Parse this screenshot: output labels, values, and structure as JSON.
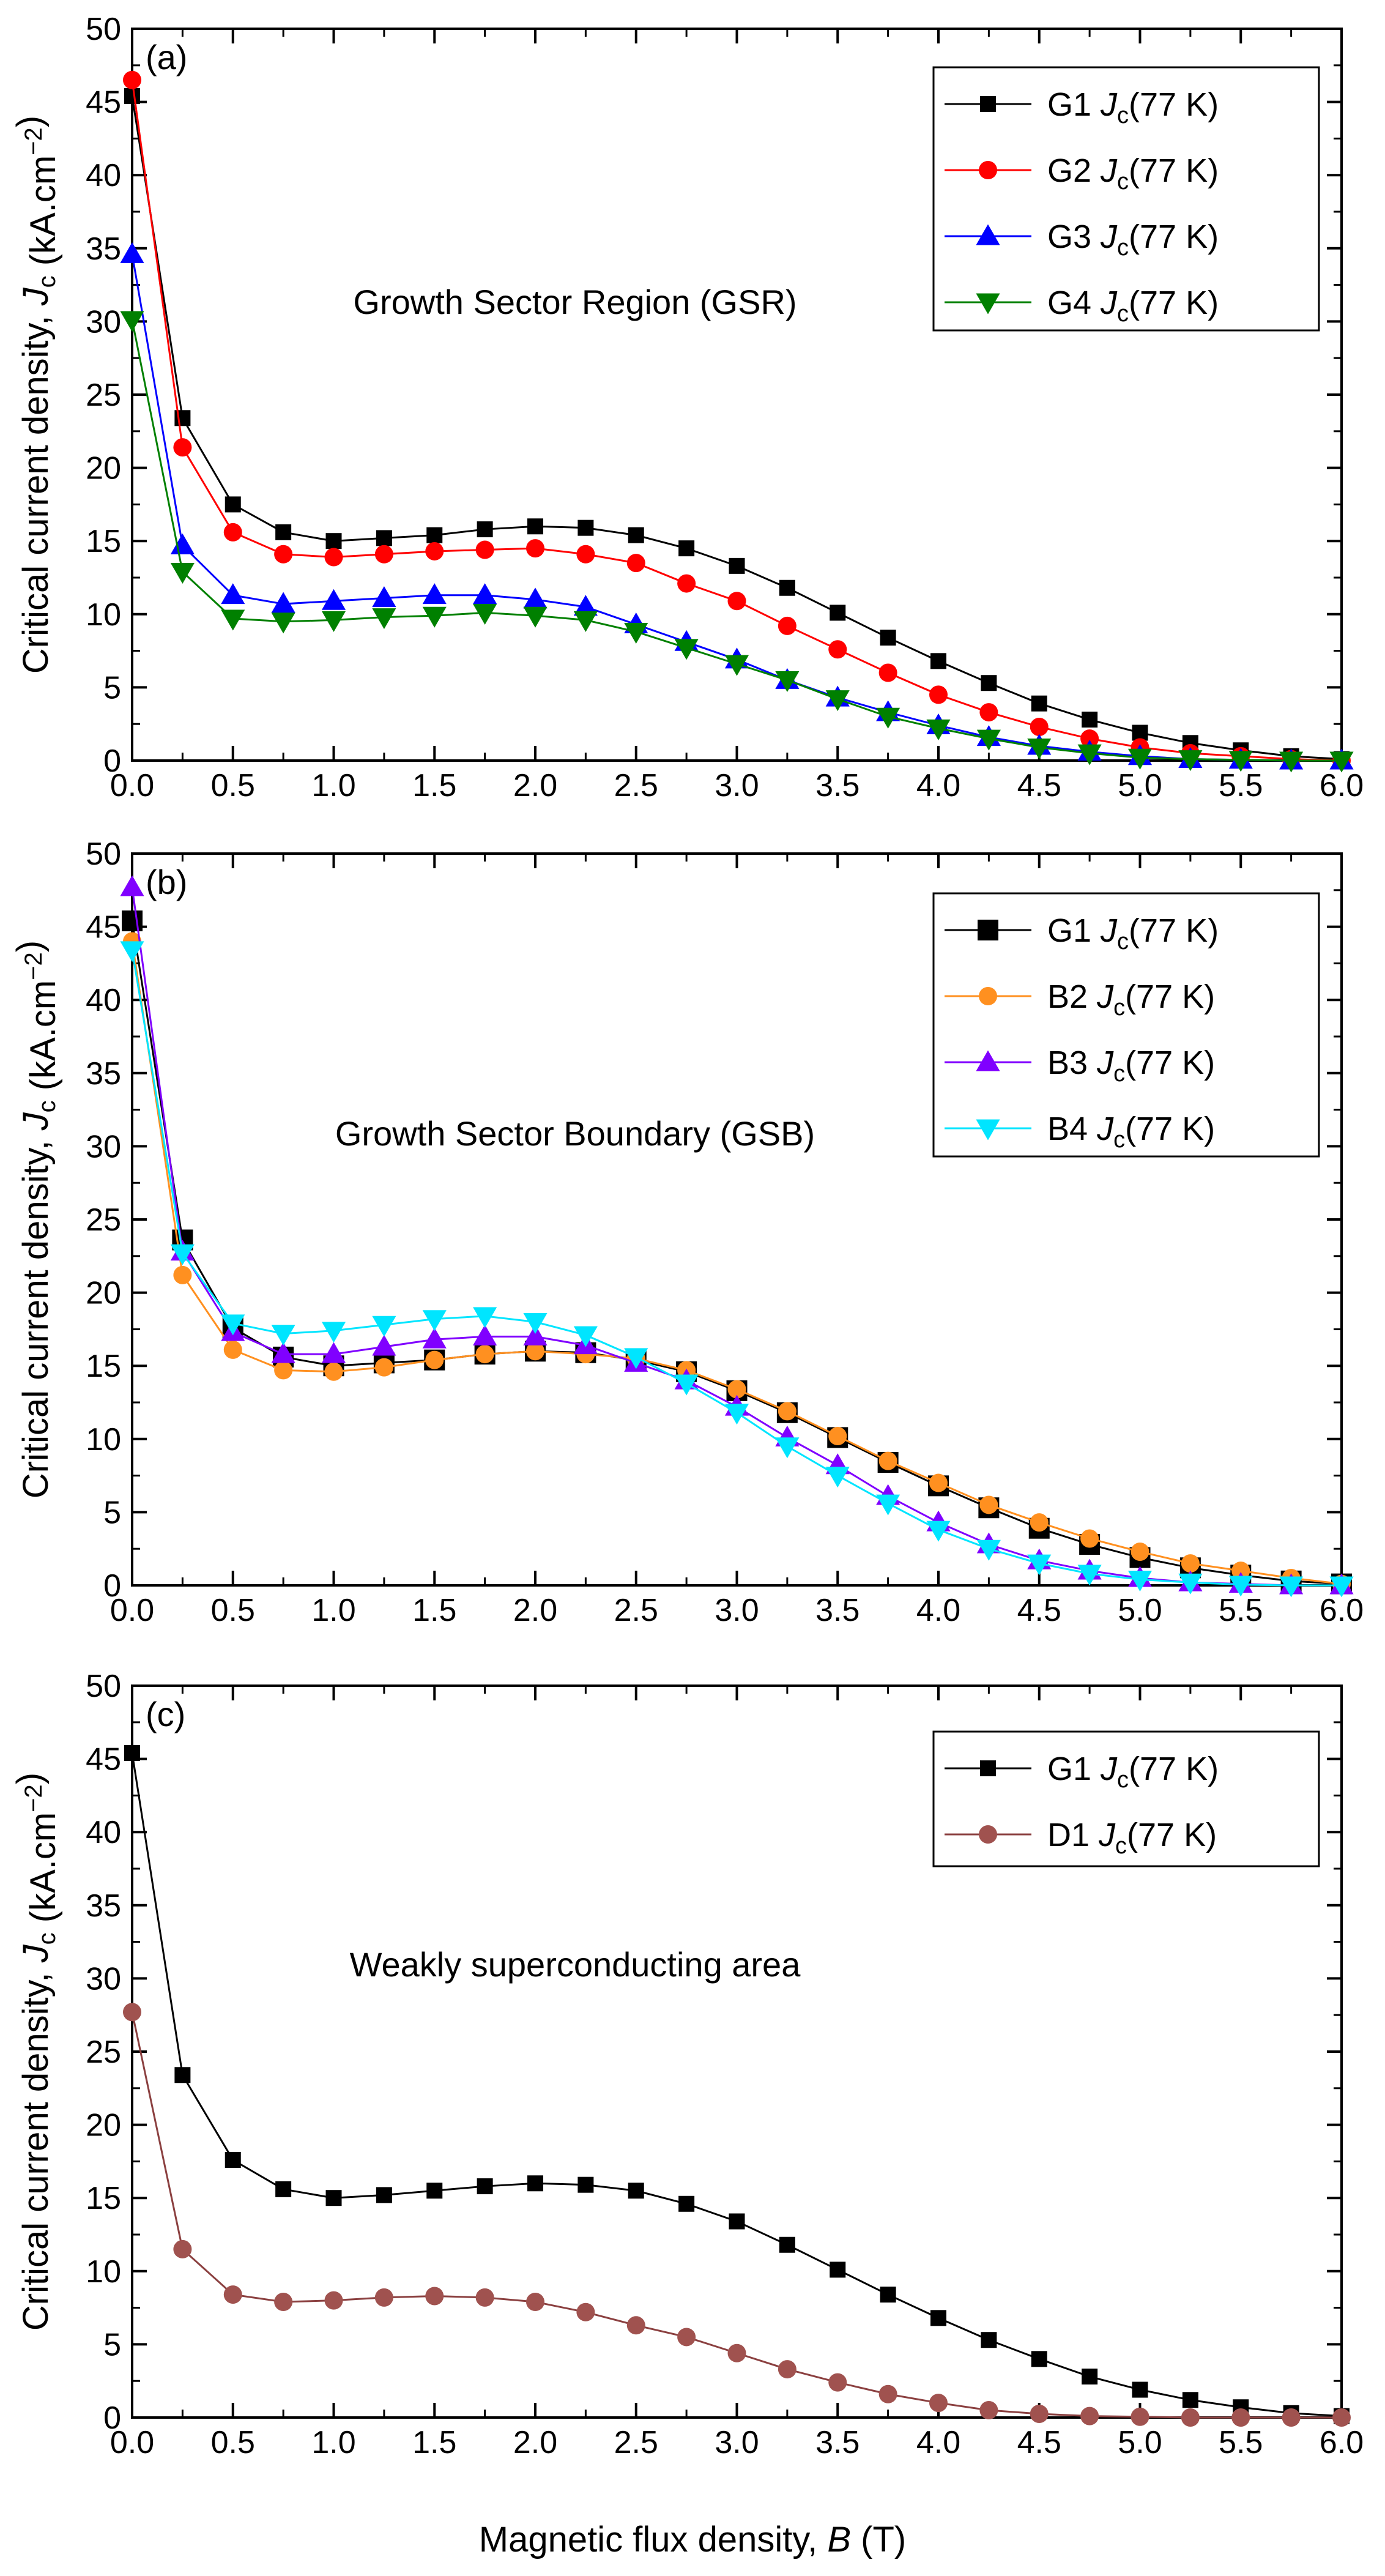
{
  "figure": {
    "xlabel_prefix": "Magnetic flux density, ",
    "xlabel_var": "B",
    "xlabel_unit": " (T)"
  },
  "chart_data": [
    {
      "type": "line",
      "panel_label": "(a)",
      "annotation": "Growth Sector Region (GSR)",
      "ylabel": {
        "prefix": "Critical current density, ",
        "var": "J",
        "sub": "c",
        "unit_open": " (kA.cm",
        "sup": "−2",
        "unit_close": ")"
      },
      "xlim": [
        0,
        6
      ],
      "ylim": [
        0,
        50
      ],
      "x_ticks": [
        "0.0",
        "0.5",
        "1.0",
        "1.5",
        "2.0",
        "2.5",
        "3.0",
        "3.5",
        "4.0",
        "4.5",
        "5.0",
        "5.5",
        "6.0"
      ],
      "y_ticks": [
        "0",
        "5",
        "10",
        "15",
        "20",
        "25",
        "30",
        "35",
        "40",
        "45",
        "50"
      ],
      "legend_position": "top-right",
      "x": [
        0,
        0.25,
        0.5,
        0.75,
        1.0,
        1.25,
        1.5,
        1.75,
        2.0,
        2.25,
        2.5,
        2.75,
        3.0,
        3.25,
        3.5,
        3.75,
        4.0,
        4.25,
        4.5,
        4.75,
        5.0,
        5.25,
        5.5,
        5.75,
        6.0
      ],
      "series": [
        {
          "name": "G1",
          "sub": "c",
          "suffix": "(77 K)",
          "color": "#000000",
          "marker": "square",
          "values": [
            45.4,
            23.4,
            17.5,
            15.6,
            15.0,
            15.2,
            15.4,
            15.8,
            16.0,
            15.9,
            15.4,
            14.5,
            13.3,
            11.8,
            10.1,
            8.4,
            6.8,
            5.3,
            3.9,
            2.8,
            1.9,
            1.2,
            0.7,
            0.3,
            0.1
          ]
        },
        {
          "name": "G2",
          "sub": "c",
          "suffix": "(77 K)",
          "color": "#ff0000",
          "marker": "circle",
          "values": [
            46.5,
            21.4,
            15.6,
            14.1,
            13.9,
            14.1,
            14.3,
            14.4,
            14.5,
            14.1,
            13.5,
            12.1,
            10.9,
            9.2,
            7.6,
            6.0,
            4.5,
            3.3,
            2.3,
            1.5,
            0.9,
            0.5,
            0.3,
            0.1,
            0.0
          ]
        },
        {
          "name": "G3",
          "sub": "c",
          "suffix": "(77 K)",
          "color": "#0000ff",
          "marker": "triangle-up",
          "values": [
            34.6,
            14.7,
            11.3,
            10.7,
            10.9,
            11.1,
            11.3,
            11.3,
            11.0,
            10.5,
            9.3,
            8.1,
            6.9,
            5.5,
            4.3,
            3.3,
            2.4,
            1.6,
            1.0,
            0.6,
            0.3,
            0.1,
            0.05,
            0.0,
            0.0
          ]
        },
        {
          "name": "G4",
          "sub": "c",
          "suffix": "(77 K)",
          "color": "#008000",
          "marker": "triangle-down",
          "values": [
            30.1,
            12.9,
            9.7,
            9.5,
            9.6,
            9.8,
            9.9,
            10.1,
            9.9,
            9.6,
            8.8,
            7.7,
            6.6,
            5.5,
            4.2,
            3.0,
            2.2,
            1.5,
            0.9,
            0.5,
            0.2,
            0.1,
            0.05,
            0.0,
            0.0
          ]
        }
      ]
    },
    {
      "type": "line",
      "panel_label": "(b)",
      "annotation": "Growth Sector Boundary (GSB)",
      "ylabel": {
        "prefix": "Critical current density, ",
        "var": "J",
        "sub": "c",
        "unit_open": " (kA.cm",
        "sup": "−2",
        "unit_close": ")"
      },
      "xlim": [
        0,
        6
      ],
      "ylim": [
        0,
        50
      ],
      "x_ticks": [
        "0.0",
        "0.5",
        "1.0",
        "1.5",
        "2.0",
        "2.5",
        "3.0",
        "3.5",
        "4.0",
        "4.5",
        "5.0",
        "5.5",
        "6.0"
      ],
      "y_ticks": [
        "0",
        "5",
        "10",
        "15",
        "20",
        "25",
        "30",
        "35",
        "40",
        "45",
        "50"
      ],
      "legend_position": "top-right",
      "x": [
        0,
        0.25,
        0.5,
        0.75,
        1.0,
        1.25,
        1.5,
        1.75,
        2.0,
        2.25,
        2.5,
        2.75,
        3.0,
        3.25,
        3.5,
        3.75,
        4.0,
        4.25,
        4.5,
        4.75,
        5.0,
        5.25,
        5.5,
        5.75,
        6.0
      ],
      "series": [
        {
          "name": "G1",
          "sub": "c",
          "suffix": "(77 K)",
          "color": "#000000",
          "marker": "square-large",
          "values": [
            45.4,
            23.6,
            17.6,
            15.6,
            15.0,
            15.2,
            15.4,
            15.8,
            16.0,
            15.9,
            15.4,
            14.6,
            13.3,
            11.8,
            10.1,
            8.4,
            6.8,
            5.3,
            3.9,
            2.8,
            1.9,
            1.2,
            0.7,
            0.3,
            0.1
          ]
        },
        {
          "name": "B2",
          "sub": "c",
          "suffix": "(77 K)",
          "color": "#ff9020",
          "marker": "circle",
          "values": [
            44.0,
            21.2,
            16.1,
            14.7,
            14.6,
            14.9,
            15.4,
            15.8,
            16.0,
            15.8,
            15.5,
            14.7,
            13.4,
            11.9,
            10.2,
            8.5,
            7.0,
            5.5,
            4.3,
            3.2,
            2.3,
            1.5,
            1.0,
            0.5,
            0.1
          ]
        },
        {
          "name": "B3",
          "sub": "c",
          "suffix": "(77 K)",
          "color": "#8000ff",
          "marker": "triangle-up",
          "values": [
            47.7,
            22.8,
            17.3,
            15.8,
            15.8,
            16.3,
            16.8,
            17.0,
            17.0,
            16.4,
            15.2,
            14.0,
            12.2,
            10.1,
            8.2,
            6.1,
            4.3,
            2.8,
            1.7,
            1.0,
            0.5,
            0.2,
            0.1,
            0.0,
            0.0
          ]
        },
        {
          "name": "B4",
          "sub": "c",
          "suffix": "(77 K)",
          "color": "#00e5ff",
          "marker": "triangle-down",
          "values": [
            43.4,
            22.7,
            17.9,
            17.2,
            17.4,
            17.8,
            18.2,
            18.4,
            18.0,
            17.1,
            15.6,
            13.8,
            11.8,
            9.5,
            7.5,
            5.6,
            3.8,
            2.5,
            1.5,
            0.8,
            0.4,
            0.2,
            0.05,
            0.0,
            0.0
          ]
        }
      ]
    },
    {
      "type": "line",
      "panel_label": "(c)",
      "annotation": "Weakly superconducting area",
      "ylabel": {
        "prefix": "Critical current density, ",
        "var": "J",
        "sub": "c",
        "unit_open": " (kA.cm",
        "sup": "−2",
        "unit_close": ")"
      },
      "xlim": [
        0,
        6
      ],
      "ylim": [
        0,
        50
      ],
      "x_ticks": [
        "0.0",
        "0.5",
        "1.0",
        "1.5",
        "2.0",
        "2.5",
        "3.0",
        "3.5",
        "4.0",
        "4.5",
        "5.0",
        "5.5",
        "6.0"
      ],
      "y_ticks": [
        "0",
        "5",
        "10",
        "15",
        "20",
        "25",
        "30",
        "35",
        "40",
        "45",
        "50"
      ],
      "legend_position": "top-right",
      "x": [
        0,
        0.25,
        0.5,
        0.75,
        1.0,
        1.25,
        1.5,
        1.75,
        2.0,
        2.25,
        2.5,
        2.75,
        3.0,
        3.25,
        3.5,
        3.75,
        4.0,
        4.25,
        4.5,
        4.75,
        5.0,
        5.25,
        5.5,
        5.75,
        6.0
      ],
      "series": [
        {
          "name": "G1",
          "sub": "c",
          "suffix": "(77 K)",
          "color": "#000000",
          "marker": "square",
          "values": [
            45.4,
            23.4,
            17.6,
            15.6,
            15.0,
            15.2,
            15.5,
            15.8,
            16.0,
            15.9,
            15.5,
            14.6,
            13.4,
            11.8,
            10.1,
            8.4,
            6.8,
            5.3,
            4.0,
            2.8,
            1.9,
            1.2,
            0.7,
            0.3,
            0.1
          ]
        },
        {
          "name": "D1",
          "sub": "c",
          "suffix": "(77 K)",
          "color": "#8b4040",
          "fill": "#a0524f",
          "marker": "circle",
          "values": [
            27.7,
            11.5,
            8.4,
            7.9,
            8.0,
            8.2,
            8.3,
            8.2,
            7.9,
            7.2,
            6.3,
            5.5,
            4.4,
            3.3,
            2.4,
            1.6,
            1.0,
            0.5,
            0.25,
            0.1,
            0.05,
            0.0,
            0.0,
            0.0,
            0.0
          ]
        }
      ]
    }
  ]
}
